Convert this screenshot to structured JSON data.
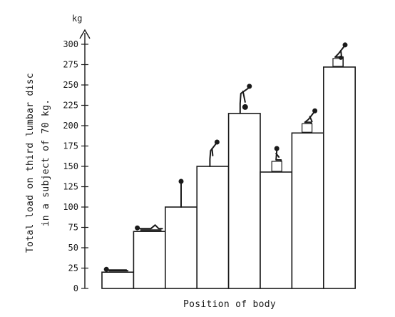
{
  "chart_data": {
    "type": "bar",
    "title": "",
    "unit": "kg",
    "ylabel_lines": [
      "Total load on third lumbar disc",
      "in a subject of 70 kg."
    ],
    "xlabel": "Position of body",
    "ylim": [
      0,
      300
    ],
    "yticks": [
      0,
      25,
      50,
      75,
      100,
      125,
      150,
      175,
      200,
      225,
      250,
      275,
      300
    ],
    "grid": false,
    "legend": "none",
    "positions": [
      "lying-supine-icon",
      "lying-supine-knees-icon",
      "standing-icon",
      "standing-leaning-forward-icon",
      "standing-lifting-weight-icon",
      "sitting-upright-icon",
      "sitting-leaning-forward-icon",
      "sitting-lifting-weight-icon"
    ],
    "values": [
      20,
      70,
      100,
      150,
      215,
      143,
      191,
      272
    ]
  }
}
